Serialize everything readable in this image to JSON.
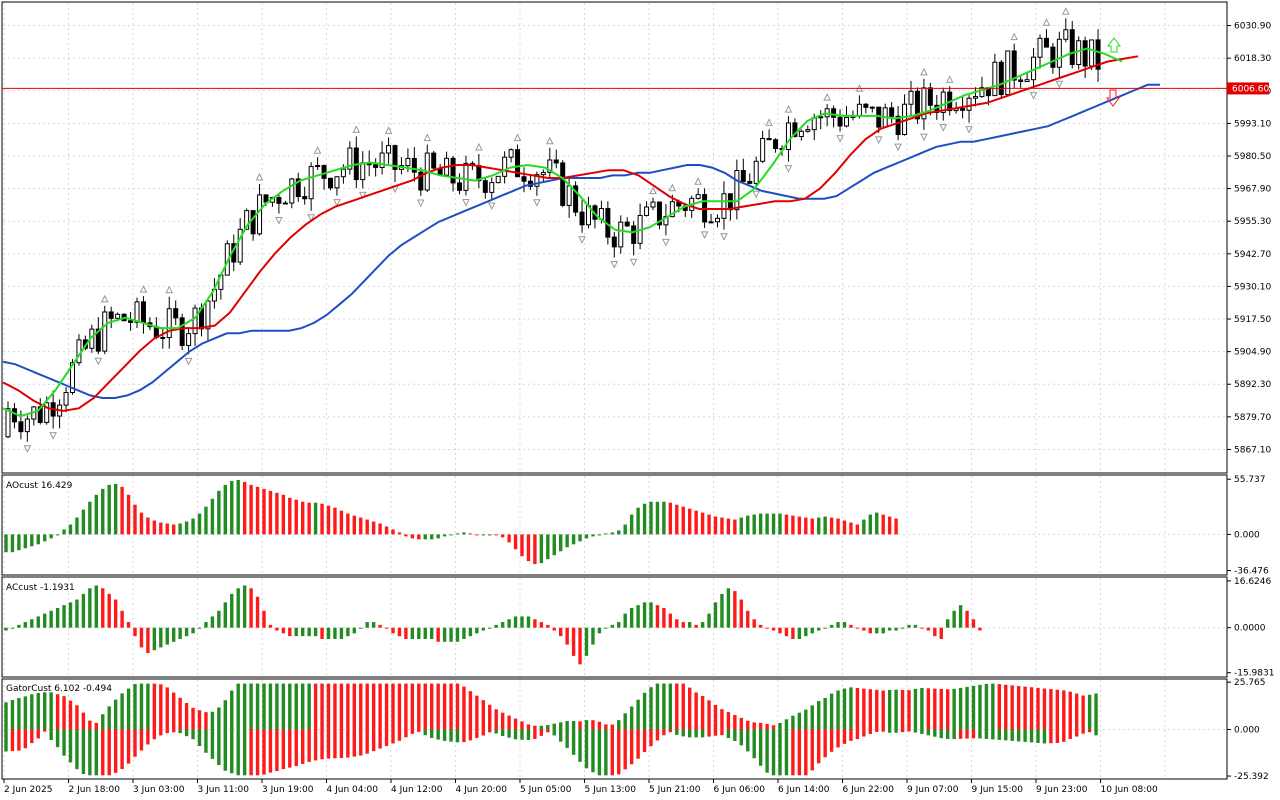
{
  "colors": {
    "bull": "#228B22",
    "bear": "#FF1A1A",
    "jaw": "#1E4FC2",
    "teeth": "#E00000",
    "lips": "#22DD22",
    "price_line": "#E00000",
    "price_tag_bg": "#E00000",
    "fractal": "#999999",
    "candle": "#000000"
  },
  "chart_data": [
    {
      "type": "candlestick",
      "name": "price",
      "yaxis_ticks": [
        "6030.90",
        "6018.30",
        "6005.70",
        "5993.10",
        "5980.50",
        "5967.90",
        "5955.30",
        "5942.70",
        "5930.10",
        "5917.50",
        "5904.90",
        "5892.30",
        "5879.70",
        "5867.10"
      ],
      "ylim": [
        5858.0,
        6040.0
      ],
      "current_price": "6006.60",
      "series": [
        {
          "name": "jaw",
          "values": [
            5901,
            5900,
            5898,
            5896,
            5894,
            5892,
            5890,
            5888,
            5887,
            5887,
            5888,
            5890,
            5893,
            5897,
            5901,
            5905,
            5908,
            5910,
            5912,
            5912,
            5913,
            5913,
            5913,
            5913,
            5914,
            5916,
            5919,
            5923,
            5927,
            5932,
            5937,
            5942,
            5946,
            5949,
            5952,
            5955,
            5957,
            5959,
            5961,
            5963,
            5965,
            5967,
            5969,
            5970,
            5971,
            5972,
            5972,
            5972,
            5972,
            5973,
            5973,
            5974,
            5974,
            5975,
            5976,
            5977,
            5977,
            5976,
            5974,
            5971,
            5969,
            5967,
            5966,
            5965,
            5964,
            5964,
            5964,
            5965,
            5968,
            5971,
            5974,
            5976,
            5978,
            5980,
            5982,
            5984,
            5985,
            5986,
            5986,
            5987,
            5988,
            5989,
            5990,
            5991,
            5992,
            5994,
            5996,
            5998,
            6000,
            6002,
            6004,
            6006,
            6008,
            6008
          ]
        },
        {
          "name": "teeth",
          "values": [
            5893,
            5890,
            5886,
            5883,
            5882,
            5883,
            5887,
            5893,
            5899,
            5905,
            5910,
            5913,
            5914,
            5914,
            5915,
            5920,
            5928,
            5936,
            5943,
            5949,
            5954,
            5958,
            5961,
            5963,
            5965,
            5967,
            5969,
            5971,
            5974,
            5976,
            5977,
            5977,
            5976,
            5975,
            5974,
            5973,
            5972,
            5972,
            5973,
            5974,
            5975,
            5975,
            5973,
            5969,
            5965,
            5962,
            5960,
            5960,
            5960,
            5961,
            5962,
            5963,
            5963,
            5964,
            5968,
            5974,
            5981,
            5987,
            5991,
            5993,
            5995,
            5997,
            5998,
            5999,
            6000,
            6001,
            6003,
            6005,
            6007,
            6009,
            6011,
            6013,
            6015,
            6017,
            6018,
            6019
          ]
        },
        {
          "name": "lips",
          "values": [
            5883,
            5880,
            5882,
            5890,
            5900,
            5910,
            5916,
            5918,
            5916,
            5914,
            5914,
            5918,
            5928,
            5942,
            5954,
            5962,
            5967,
            5971,
            5973,
            5975,
            5977,
            5978,
            5977,
            5976,
            5975,
            5973,
            5972,
            5971,
            5973,
            5976,
            5977,
            5976,
            5972,
            5965,
            5957,
            5952,
            5951,
            5953,
            5957,
            5961,
            5963,
            5963,
            5963,
            5968,
            5977,
            5987,
            5994,
            5997,
            5996,
            5996,
            5996,
            5995,
            5996,
            5998,
            6001,
            6004,
            6006,
            6008,
            6011,
            6014,
            6017,
            6020,
            6022,
            6020,
            6017
          ]
        }
      ]
    },
    {
      "type": "bar",
      "name": "AOcust",
      "title": "AOcust 16.429",
      "yaxis_ticks": [
        "55.737",
        "0.000",
        "-36.476"
      ],
      "ylim": [
        -41,
        60
      ],
      "values": [
        -18,
        -18,
        -16,
        -14,
        -12,
        -10,
        -7,
        -4,
        0,
        5,
        10,
        17,
        25,
        33,
        40,
        46,
        50,
        51,
        48,
        40,
        30,
        22,
        17,
        14,
        12,
        11,
        10,
        11,
        13,
        16,
        21,
        28,
        36,
        44,
        50,
        54,
        55,
        53,
        50,
        48,
        46,
        44,
        42,
        40,
        37,
        35,
        33,
        32,
        32,
        31,
        29,
        27,
        24,
        21,
        19,
        17,
        15,
        13,
        11,
        8,
        5,
        2,
        -2,
        -4,
        -5,
        -5,
        -5,
        -4,
        -2,
        0,
        1,
        2,
        1,
        0,
        0,
        0,
        -1,
        -3,
        -8,
        -15,
        -22,
        -27,
        -30,
        -29,
        -25,
        -21,
        -17,
        -13,
        -10,
        -7,
        -4,
        -2,
        0,
        1,
        2,
        4,
        10,
        20,
        27,
        31,
        33,
        33,
        33,
        32,
        30,
        28,
        26,
        24,
        22,
        20,
        18,
        17,
        16,
        15,
        17,
        19,
        20,
        21,
        21,
        21,
        21,
        20,
        19,
        18,
        17,
        16,
        17,
        18,
        17,
        16,
        14,
        12,
        10,
        15,
        20,
        22,
        20,
        18,
        16
      ]
    },
    {
      "type": "bar",
      "name": "ACcust",
      "title": "ACcust -1.1931",
      "yaxis_ticks": [
        "16.6246",
        "0.0000",
        "-15.9831"
      ],
      "ylim": [
        -17.5,
        18
      ],
      "values": [
        -1,
        0,
        1,
        2,
        3,
        4,
        5,
        6,
        7,
        8,
        9,
        10,
        12,
        14,
        15,
        14,
        12,
        10,
        6,
        2,
        -3,
        -7,
        -9,
        -8,
        -7,
        -6,
        -5,
        -4,
        -3,
        -2,
        0,
        2,
        4,
        6,
        9,
        12,
        14,
        15,
        14,
        11,
        6,
        1,
        -1,
        -2,
        -3,
        -3,
        -3,
        -3,
        -3,
        -4,
        -4,
        -4,
        -4,
        -3,
        -2,
        0,
        2,
        2,
        1,
        0,
        -2,
        -3,
        -4,
        -4,
        -4,
        -4,
        -4,
        -5,
        -5,
        -5,
        -5,
        -4,
        -3,
        -2,
        -1,
        0,
        1,
        2,
        3,
        4,
        4,
        4,
        3,
        2,
        1,
        -1,
        -3,
        -6,
        -10,
        -13,
        -10,
        -6,
        -2,
        0,
        1,
        2,
        5,
        7,
        8,
        9,
        9,
        8,
        7,
        5,
        3,
        2,
        2,
        1,
        2,
        5,
        9,
        12,
        14,
        13,
        10,
        6,
        3,
        1,
        0,
        -1,
        -2,
        -3,
        -4,
        -4,
        -3,
        -2,
        -1,
        0,
        1,
        2,
        2,
        1,
        0,
        -1,
        -2,
        -2,
        -2,
        -1,
        -1,
        0,
        1,
        1,
        0,
        -1,
        -3,
        -4,
        3,
        6,
        8,
        6,
        3,
        -1
      ]
    },
    {
      "type": "bar",
      "name": "GatorCust",
      "title": "GatorCust 6.102 -0.494",
      "yaxis_ticks": [
        "25.765",
        "0.000",
        "-25.392"
      ],
      "ylim": [
        -27,
        27.5
      ]
    }
  ],
  "xaxis": {
    "labels": [
      "2 Jun 2025",
      "2 Jun 18:00",
      "3 Jun 03:00",
      "3 Jun 11:00",
      "3 Jun 19:00",
      "4 Jun 04:00",
      "4 Jun 12:00",
      "4 Jun 20:00",
      "5 Jun 05:00",
      "5 Jun 13:00",
      "5 Jun 21:00",
      "6 Jun 06:00",
      "6 Jun 14:00",
      "6 Jun 22:00",
      "9 Jun 07:00",
      "9 Jun 15:00",
      "9 Jun 23:00",
      "10 Jun 08:00"
    ]
  }
}
